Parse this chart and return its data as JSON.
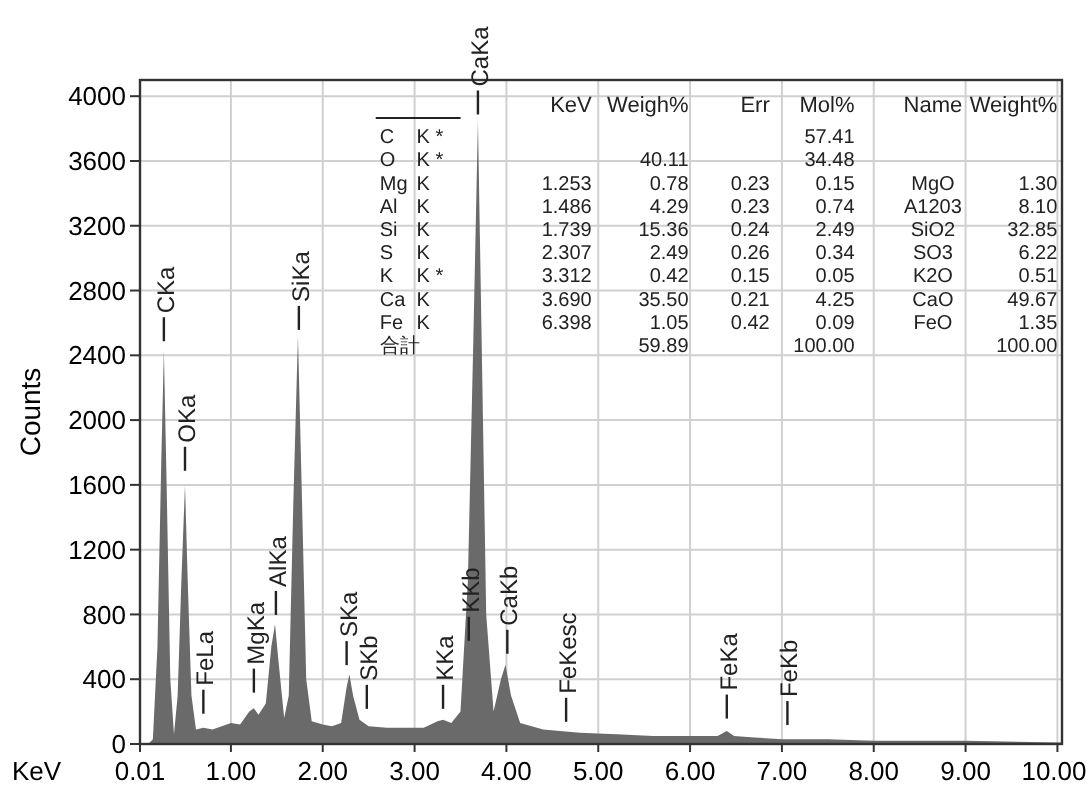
{
  "chart_data": {
    "type": "area",
    "xlabel": "KeV",
    "ylabel": "Counts",
    "grid": true,
    "xlim": [
      0.01,
      10.05
    ],
    "ylim": [
      0,
      4100
    ],
    "xticks": [
      0.01,
      {
        "value": 1,
        "label": "1.00"
      },
      {
        "value": 2,
        "label": "2.00"
      },
      {
        "value": 3,
        "label": "3.00"
      },
      {
        "value": 4,
        "label": "4.00"
      },
      {
        "value": 5,
        "label": "5.00"
      },
      {
        "value": 6,
        "label": "6.00"
      },
      {
        "value": 7,
        "label": "7.00"
      },
      {
        "value": 8,
        "label": "8.00"
      },
      {
        "value": 9,
        "label": "9.00"
      },
      {
        "value": 10,
        "label": "10.00"
      }
    ],
    "yticks": [
      0,
      400,
      800,
      1200,
      1600,
      2000,
      2400,
      2800,
      3200,
      3600,
      4000
    ],
    "series": [
      {
        "color": "#6a6a6a",
        "x": [
          0.01,
          0.1,
          0.15,
          0.2,
          0.24,
          0.27,
          0.3,
          0.34,
          0.38,
          0.42,
          0.46,
          0.5,
          0.53,
          0.57,
          0.62,
          0.7,
          0.8,
          0.9,
          1.0,
          1.1,
          1.2,
          1.25,
          1.3,
          1.38,
          1.44,
          1.48,
          1.52,
          1.58,
          1.63,
          1.68,
          1.73,
          1.77,
          1.82,
          1.88,
          2.0,
          2.1,
          2.2,
          2.26,
          2.29,
          2.33,
          2.4,
          2.5,
          2.7,
          2.9,
          3.1,
          3.25,
          3.31,
          3.4,
          3.5,
          3.58,
          3.64,
          3.69,
          3.73,
          3.78,
          3.86,
          3.94,
          3.99,
          4.05,
          4.15,
          4.4,
          4.8,
          5.2,
          5.6,
          6.0,
          6.3,
          6.4,
          6.48,
          6.7,
          7.0,
          7.5,
          8.0,
          9.0,
          10.0,
          10.05
        ],
        "values": [
          0,
          0,
          30,
          600,
          1700,
          2430,
          1600,
          400,
          60,
          300,
          1000,
          1600,
          1000,
          300,
          90,
          100,
          90,
          110,
          130,
          120,
          200,
          220,
          180,
          250,
          600,
          740,
          500,
          160,
          300,
          1500,
          2520,
          1600,
          400,
          140,
          120,
          110,
          130,
          350,
          430,
          300,
          150,
          110,
          100,
          100,
          100,
          140,
          150,
          130,
          200,
          1000,
          2500,
          3850,
          2500,
          800,
          200,
          400,
          490,
          300,
          130,
          90,
          70,
          60,
          50,
          50,
          50,
          80,
          50,
          40,
          30,
          30,
          20,
          20,
          10,
          10
        ]
      }
    ],
    "annotations": [
      {
        "text": "CKa",
        "x": 0.27,
        "y": 2450
      },
      {
        "text": "OKa",
        "x": 0.5,
        "y": 1650
      },
      {
        "text": "FeLa",
        "x": 0.7,
        "y": 150
      },
      {
        "text": "MgKa",
        "x": 1.25,
        "y": 280
      },
      {
        "text": "AlKa",
        "x": 1.49,
        "y": 760
      },
      {
        "text": "SiKa",
        "x": 1.74,
        "y": 2520
      },
      {
        "text": "SKa",
        "x": 2.26,
        "y": 450
      },
      {
        "text": "SKb",
        "x": 2.48,
        "y": 180
      },
      {
        "text": "KKa",
        "x": 3.31,
        "y": 180
      },
      {
        "text": "KKb",
        "x": 3.59,
        "y": 600
      },
      {
        "text": "CaKa",
        "x": 3.69,
        "y": 3850
      },
      {
        "text": "CaKb",
        "x": 4.01,
        "y": 520
      },
      {
        "text": "FeKesc",
        "x": 4.65,
        "y": 100
      },
      {
        "text": "FeKa",
        "x": 6.4,
        "y": 120
      },
      {
        "text": "FeKb",
        "x": 7.06,
        "y": 80
      },
      "\t\tKeV\tWeigh%\tErr\tMol%\tName\tWeight%",
      "C\tK *\t\t\t\t57.41\t\t",
      "O\tK *\t\t40.11\t\t34.48\t\t",
      "Mg\tK\t1.253\t0.78\t0.23\t0.15\tMgO\t1.30",
      "Al\tK\t1.486\t4.29\t0.23\t0.74\tA1203\t8.10",
      "Si\tK\t1.739\t15.36\t0.24\t2.49\tSiO2\t32.85",
      "S\tK\t2.307\t2.49\t0.26\t0.34\tSO3\t6.22",
      "K\tK *\t3.312\t0.42\t0.15\t0.05\tK2O\t0.51",
      "Ca\tK\t3.690\t35.50\t0.21\t4.25\tCaO\t49.67",
      "Fe\tK\t6.398\t1.05\t0.42\t0.09\tFeO\t1.35",
      "合計\t\t\t59.89\t\t100.00\t\t100.00"
    ]
  }
}
